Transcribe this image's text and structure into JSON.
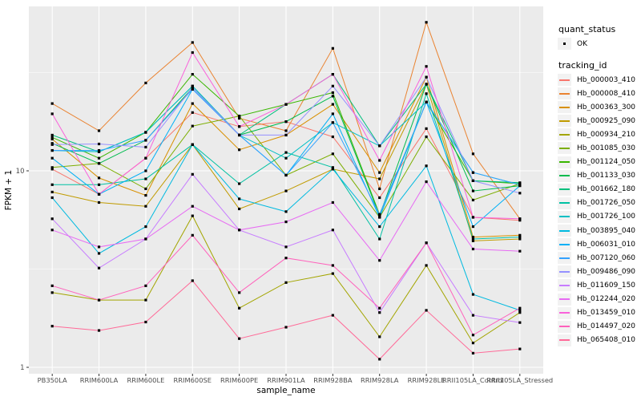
{
  "chart_data": {
    "type": "line",
    "xlabel": "sample_name",
    "ylabel": "FPKM + 1",
    "y_scale": "log10",
    "y_tick_labels": [
      "1",
      "10"
    ],
    "y_tick_values": [
      1,
      10
    ],
    "y_minor_gridline_values": [
      3.162,
      31.62
    ],
    "ylim": [
      1,
      72
    ],
    "grid": true,
    "legend_position": "right",
    "categories": [
      "PB350LA",
      "RRIM600LA",
      "RRIM600LE",
      "RRIM600SE",
      "RRIM600PE",
      "RRIM901LA",
      "RRIM928BA",
      "RRIM928LA",
      "RRIM928LE",
      "RRII105LA_Control",
      "RRII105LA_Stressed"
    ],
    "series": [
      {
        "name": "Hb_000003_410",
        "color": "#F8766D",
        "values": [
          10.2,
          7.6,
          11.6,
          19.8,
          16.8,
          17.8,
          14.9,
          7.3,
          16.4,
          5.8,
          5.6
        ]
      },
      {
        "name": "Hb_000008_410",
        "color": "#EA8331",
        "values": [
          22.0,
          16.0,
          28.0,
          45.0,
          18.5,
          16.0,
          42.0,
          8.1,
          57.0,
          12.2,
          5.7
        ]
      },
      {
        "name": "Hb_000363_300",
        "color": "#D89000",
        "values": [
          14.5,
          9.2,
          7.5,
          22.0,
          12.8,
          15.2,
          21.8,
          9.8,
          30.0,
          4.6,
          4.7
        ]
      },
      {
        "name": "Hb_000925_090",
        "color": "#C09B00",
        "values": [
          7.8,
          6.9,
          6.6,
          13.6,
          6.4,
          7.9,
          10.2,
          9.1,
          27.6,
          4.4,
          4.5
        ]
      },
      {
        "name": "Hb_000934_210",
        "color": "#A3A500",
        "values": [
          2.4,
          2.2,
          2.2,
          5.9,
          2.0,
          2.7,
          3.0,
          1.43,
          3.3,
          1.33,
          1.9
        ]
      },
      {
        "name": "Hb_001085_030",
        "color": "#7CAE00",
        "values": [
          10.4,
          10.9,
          8.1,
          16.9,
          19.0,
          9.5,
          12.2,
          5.8,
          14.9,
          7.1,
          8.6
        ]
      },
      {
        "name": "Hb_001124_050",
        "color": "#39B600",
        "values": [
          14.8,
          11.6,
          15.7,
          31.0,
          19.0,
          21.8,
          25.0,
          6.0,
          22.4,
          8.9,
          8.6
        ]
      },
      {
        "name": "Hb_001133_030",
        "color": "#00BB4E",
        "values": [
          13.8,
          10.9,
          14.3,
          26.5,
          15.2,
          17.8,
          24.0,
          5.9,
          27.6,
          7.9,
          8.4
        ]
      },
      {
        "name": "Hb_001662_180",
        "color": "#00BF7D",
        "values": [
          15.2,
          12.5,
          15.7,
          27.0,
          15.2,
          21.8,
          31.0,
          13.4,
          27.6,
          8.9,
          8.7
        ]
      },
      {
        "name": "Hb_001726_050",
        "color": "#00C1A3",
        "values": [
          8.5,
          8.5,
          9.1,
          13.6,
          8.6,
          12.4,
          10.4,
          4.5,
          24.7,
          4.5,
          4.6
        ]
      },
      {
        "name": "Hb_001726_100",
        "color": "#00BFC4",
        "values": [
          12.7,
          12.5,
          15.7,
          27.0,
          15.2,
          11.6,
          17.6,
          13.4,
          22.4,
          9.8,
          8.5
        ]
      },
      {
        "name": "Hb_003895_040",
        "color": "#00BAE0",
        "values": [
          7.3,
          3.8,
          5.2,
          13.6,
          7.2,
          6.2,
          10.2,
          5.2,
          10.6,
          2.35,
          1.95
        ]
      },
      {
        "name": "Hb_006031_010",
        "color": "#00B0F6",
        "values": [
          11.6,
          7.6,
          10.0,
          26.0,
          15.2,
          9.5,
          19.5,
          5.8,
          22.4,
          5.2,
          8.4
        ]
      },
      {
        "name": "Hb_007120_060",
        "color": "#35A2FF",
        "values": [
          12.7,
          12.7,
          14.3,
          26.0,
          15.2,
          9.5,
          17.6,
          6.0,
          22.4,
          9.8,
          8.5
        ]
      },
      {
        "name": "Hb_009486_090",
        "color": "#9590FF",
        "values": [
          13.6,
          13.7,
          13.2,
          26.5,
          15.2,
          15.2,
          27.0,
          13.4,
          30.0,
          8.9,
          7.7
        ]
      },
      {
        "name": "Hb_011609_150",
        "color": "#C77CFF",
        "values": [
          5.7,
          3.2,
          4.5,
          9.6,
          5.0,
          4.1,
          5.0,
          1.9,
          4.3,
          1.84,
          1.69
        ]
      },
      {
        "name": "Hb_012244_020",
        "color": "#E76BF3",
        "values": [
          5.0,
          4.1,
          4.5,
          6.6,
          5.0,
          5.5,
          6.9,
          3.5,
          8.8,
          4.0,
          3.9
        ]
      },
      {
        "name": "Hb_013459_010",
        "color": "#FA62DB",
        "values": [
          19.5,
          7.6,
          11.6,
          40.0,
          16.8,
          21.8,
          31.0,
          11.3,
          34.0,
          5.8,
          5.7
        ]
      },
      {
        "name": "Hb_014497_020",
        "color": "#FF62BC",
        "values": [
          2.6,
          2.2,
          2.6,
          4.7,
          2.4,
          3.6,
          3.3,
          2.0,
          4.3,
          1.46,
          2.0
        ]
      },
      {
        "name": "Hb_065408_010",
        "color": "#FF6A98",
        "values": [
          1.62,
          1.54,
          1.7,
          2.76,
          1.4,
          1.6,
          1.84,
          1.1,
          1.95,
          1.18,
          1.24
        ]
      }
    ],
    "legend": {
      "quant_status": {
        "title": "quant_status",
        "items": [
          {
            "label": "OK",
            "marker": "black-square-point"
          }
        ]
      },
      "tracking_id": {
        "title": "tracking_id"
      }
    },
    "colors": {
      "panel_bg": "#EBEBEB",
      "grid": "#FFFFFF",
      "axis_text": "#4D4D4D",
      "tick": "#333333",
      "point": "#000000",
      "legend_key_bg": "#F2F2F2"
    }
  }
}
